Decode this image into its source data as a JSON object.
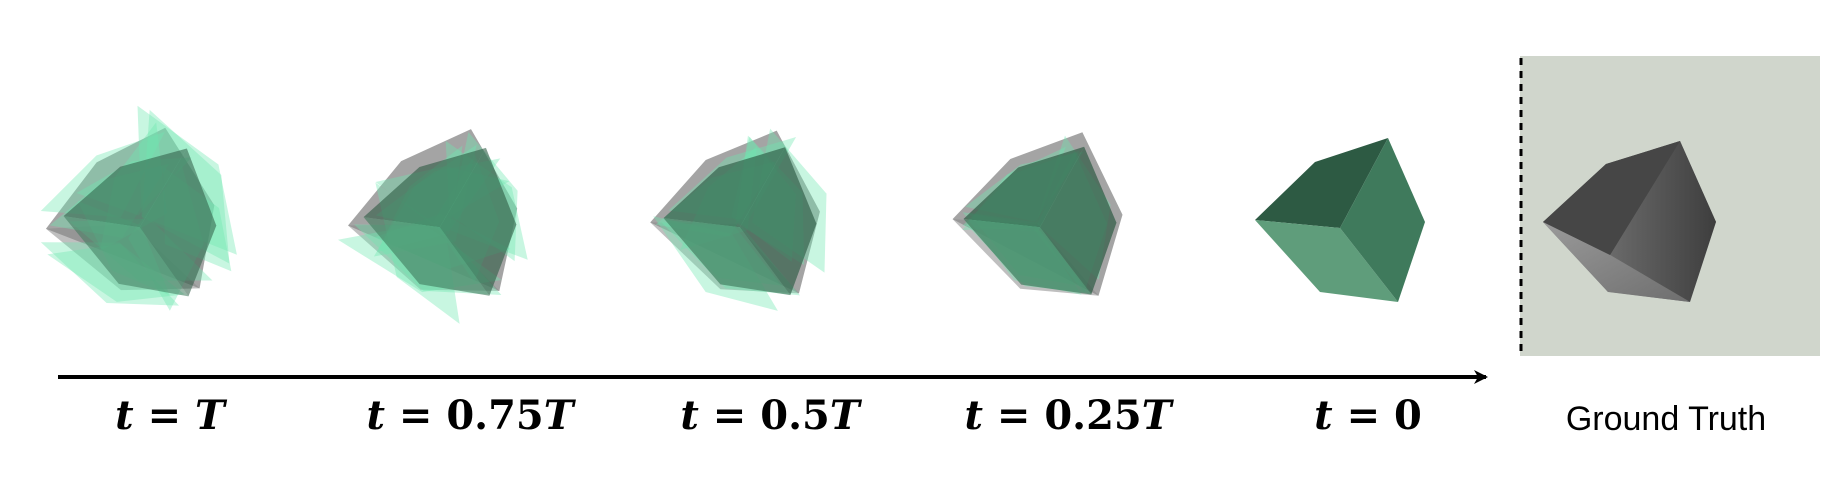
{
  "stages": [
    {
      "id": "t-T",
      "lhs": "t",
      "op": "=",
      "rhs_num": "",
      "rhs_var": "T",
      "spread": 1.0
    },
    {
      "id": "t-075T",
      "lhs": "t",
      "op": "=",
      "rhs_num": "0.75",
      "rhs_var": "T",
      "spread": 0.75
    },
    {
      "id": "t-05T",
      "lhs": "t",
      "op": "=",
      "rhs_num": "0.5",
      "rhs_var": "T",
      "spread": 0.5
    },
    {
      "id": "t-025T",
      "lhs": "t",
      "op": "=",
      "rhs_num": "0.25",
      "rhs_var": "T",
      "spread": 0.25
    },
    {
      "id": "t-0",
      "lhs": "t",
      "op": "=",
      "rhs_num": "0",
      "rhs_var": "",
      "spread": 0.0
    }
  ],
  "ground_truth": {
    "label": "Ground Truth"
  },
  "colors": {
    "noisy_fill": "#6ee8b0",
    "cube_dark": "#2d5a43",
    "cube_mid": "#3f7a5c",
    "cube_light": "#5f9d7b",
    "gray_dark": "#3c3c3c",
    "gray_mid": "#5a5a5a",
    "gray_light": "#8a8a8a",
    "gt_background": "#d0d6cc",
    "arrow": "#000000"
  }
}
